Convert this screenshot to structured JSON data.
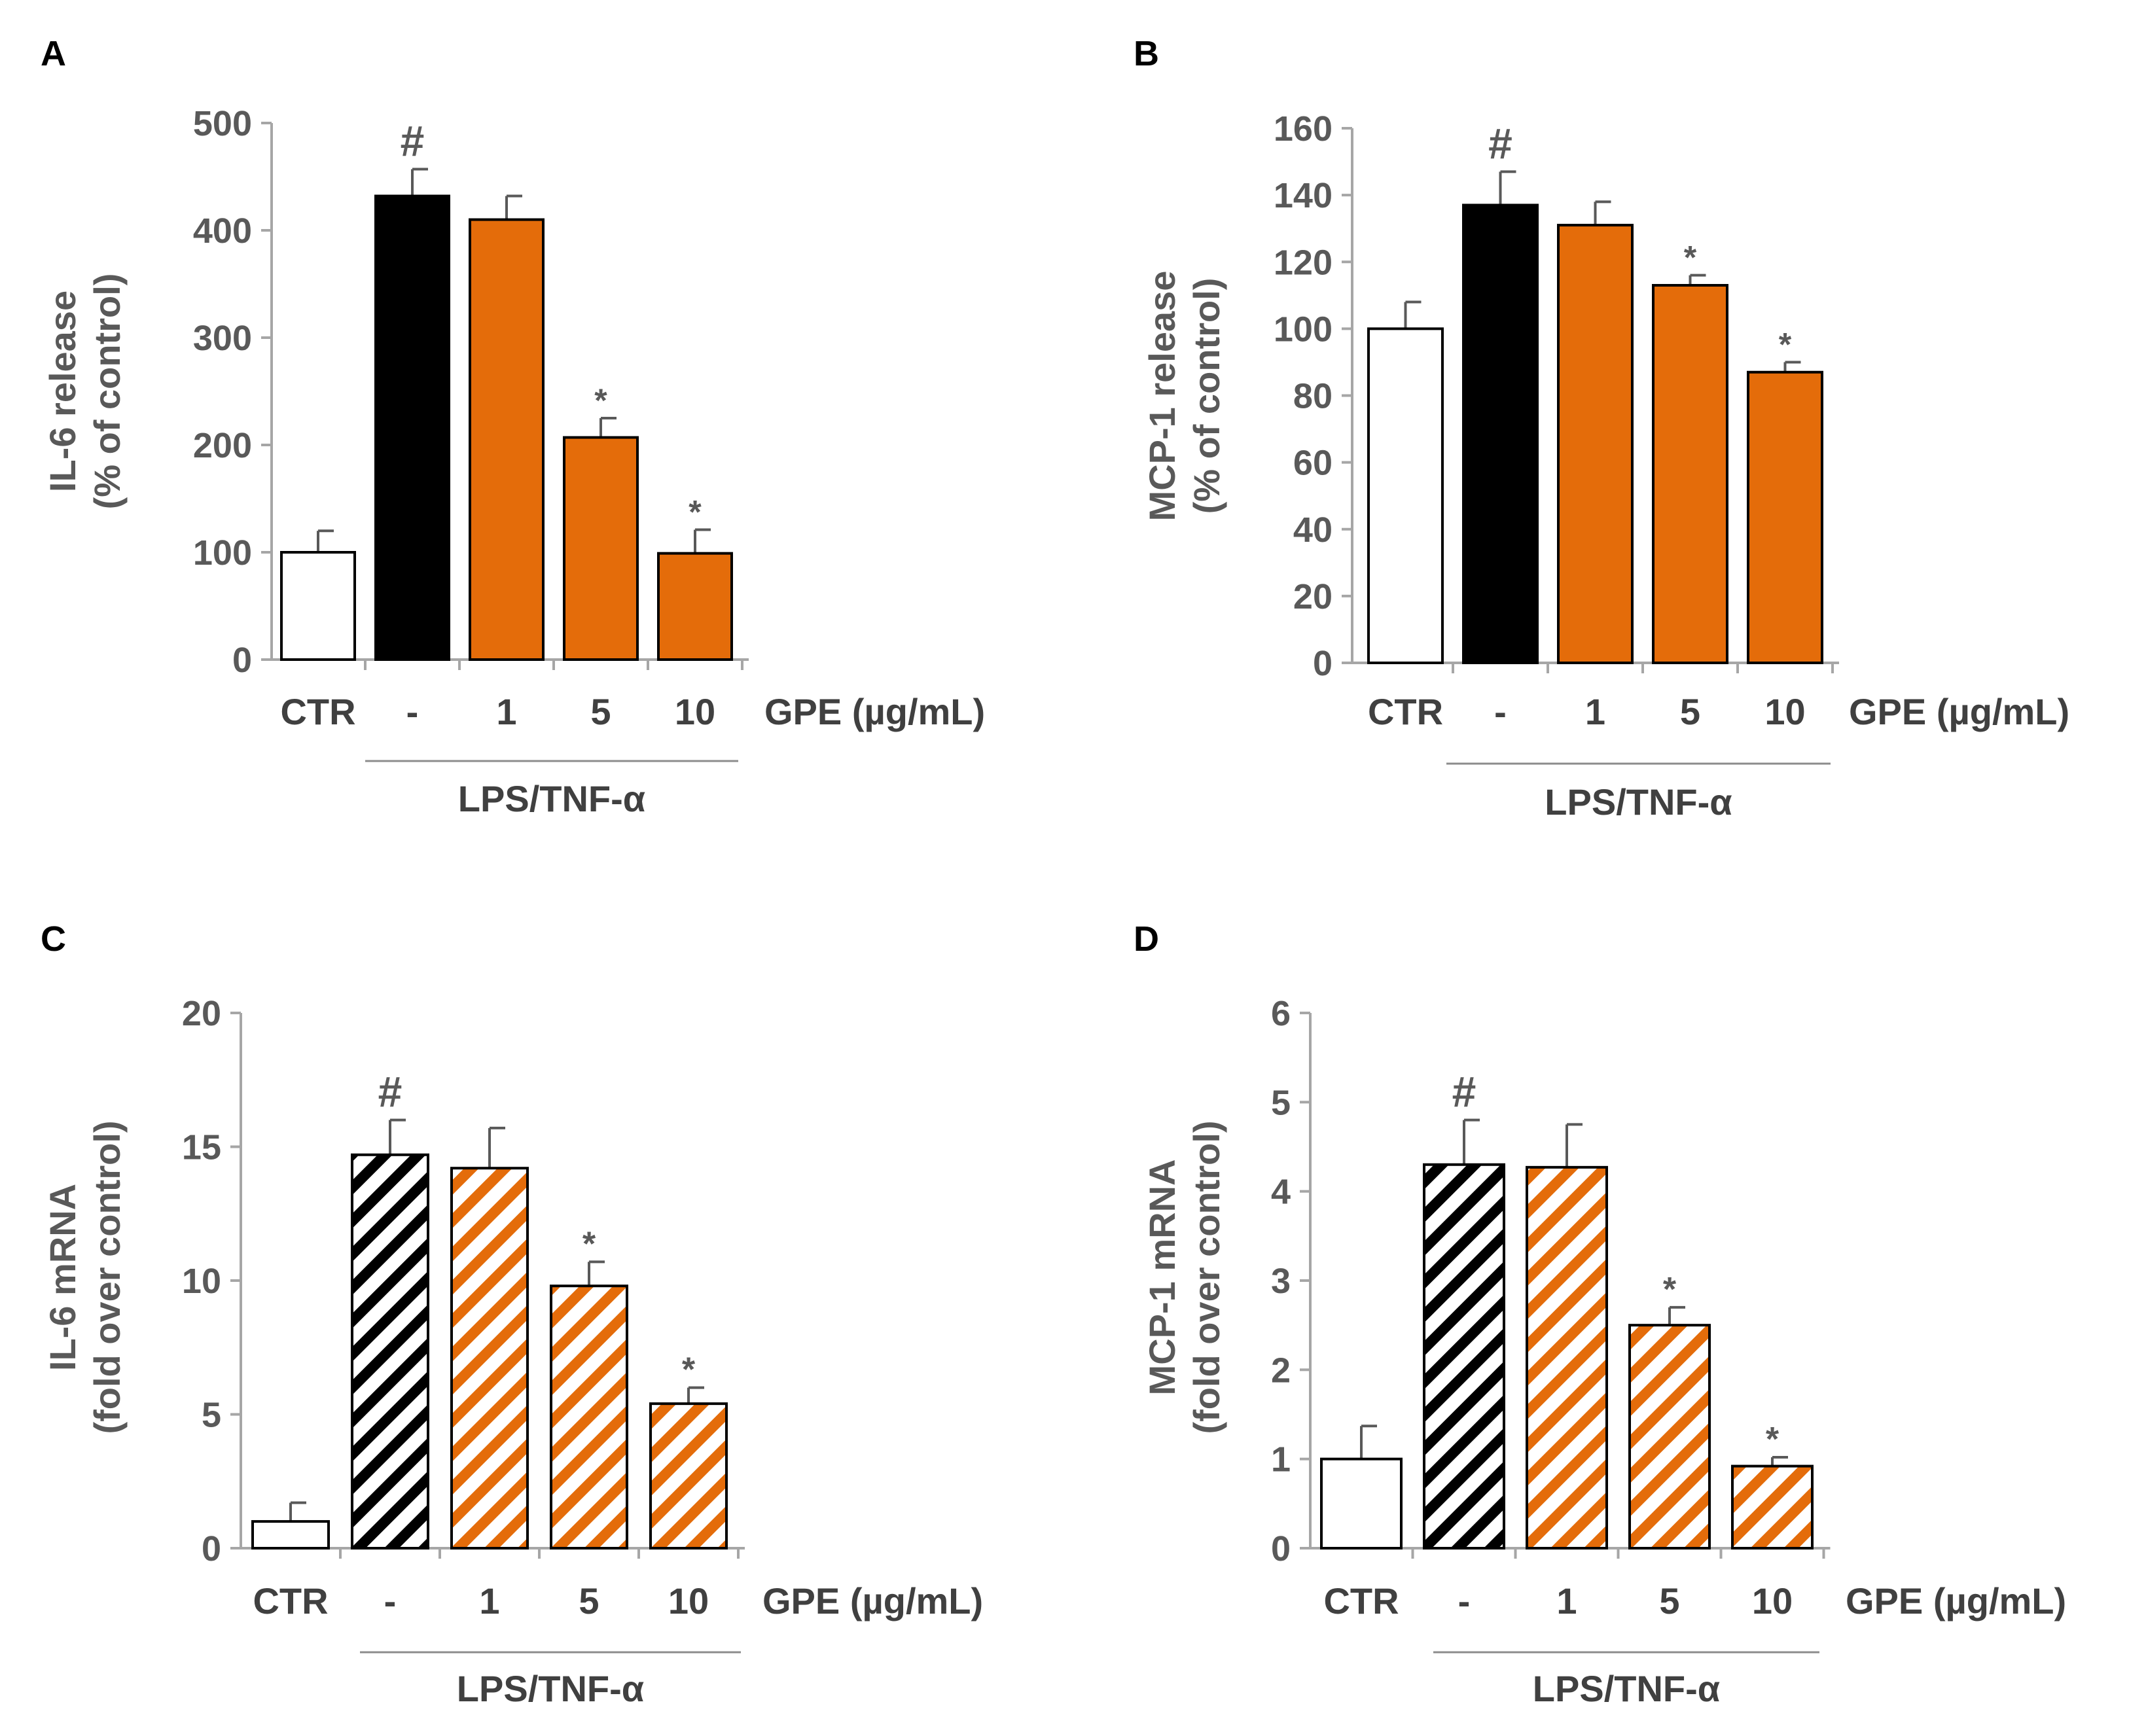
{
  "chart_data": [
    {
      "panel": "A",
      "type": "bar",
      "ylabel": [
        "IL-6 release",
        "(% of control)"
      ],
      "ylim": [
        0,
        500
      ],
      "yticks": [
        0,
        100,
        200,
        300,
        400,
        500
      ],
      "categories": [
        "CTR",
        "-",
        "1",
        "5",
        "10"
      ],
      "x_suffix": "GPE (µg/mL)",
      "group_label": "LPS/TNF-α",
      "values": [
        100,
        432,
        410,
        207,
        99
      ],
      "errors": [
        20,
        25,
        22,
        18,
        22
      ],
      "annotations": [
        "",
        "#",
        "",
        "*",
        "*"
      ],
      "fills": [
        "white",
        "black",
        "orange",
        "orange",
        "orange"
      ],
      "pattern": "solid"
    },
    {
      "panel": "B",
      "type": "bar",
      "ylabel": [
        "MCP-1 release",
        "(% of control)"
      ],
      "ylim": [
        0,
        160
      ],
      "yticks": [
        0,
        20,
        40,
        60,
        80,
        100,
        120,
        140,
        160
      ],
      "categories": [
        "CTR",
        "-",
        "1",
        "5",
        "10"
      ],
      "x_suffix": "GPE (µg/mL)",
      "group_label": "LPS/TNF-α",
      "values": [
        100,
        137,
        131,
        113,
        87
      ],
      "errors": [
        8,
        10,
        7,
        3,
        3
      ],
      "annotations": [
        "",
        "#",
        "",
        "*",
        "*"
      ],
      "fills": [
        "white",
        "black",
        "orange",
        "orange",
        "orange"
      ],
      "pattern": "solid"
    },
    {
      "panel": "C",
      "type": "bar",
      "ylabel": [
        "IL-6 mRNA",
        "(fold over control)"
      ],
      "ylim": [
        0,
        20
      ],
      "yticks": [
        0,
        5,
        10,
        15,
        20
      ],
      "categories": [
        "CTR",
        "-",
        "1",
        "5",
        "10"
      ],
      "x_suffix": "GPE (µg/mL)",
      "group_label": "LPS/TNF-α",
      "values": [
        1,
        14.7,
        14.2,
        9.8,
        5.4
      ],
      "errors": [
        0.7,
        1.3,
        1.5,
        0.9,
        0.6
      ],
      "annotations": [
        "",
        "#",
        "",
        "*",
        "*"
      ],
      "fills": [
        "white",
        "black",
        "orange",
        "orange",
        "orange"
      ],
      "pattern": "hatched"
    },
    {
      "panel": "D",
      "type": "bar",
      "ylabel": [
        "MCP-1 mRNA",
        "(fold over control)"
      ],
      "ylim": [
        0,
        6
      ],
      "yticks": [
        0,
        1,
        2,
        3,
        4,
        5,
        6
      ],
      "categories": [
        "CTR",
        "-",
        "1",
        "5",
        "10"
      ],
      "x_suffix": "GPE (µg/mL)",
      "group_label": "LPS/TNF-α",
      "values": [
        1,
        4.3,
        4.27,
        2.5,
        0.92
      ],
      "errors": [
        0.37,
        0.5,
        0.48,
        0.2,
        0.1
      ],
      "annotations": [
        "",
        "#",
        "",
        "*",
        "*"
      ],
      "fills": [
        "white",
        "black",
        "orange",
        "orange",
        "orange"
      ],
      "pattern": "hatched"
    }
  ],
  "colors": {
    "orange": "#e46c0a",
    "black": "#000000",
    "white": "#ffffff",
    "axis": "#a6a6a6",
    "text": "#595959"
  }
}
